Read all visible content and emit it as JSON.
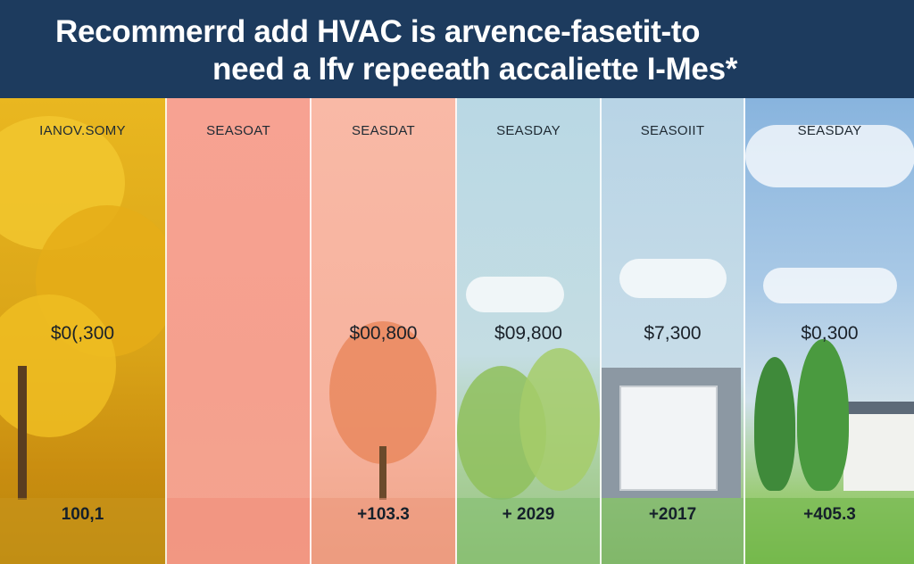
{
  "header": {
    "title_line1": "Recommerrd add HVAC is arvence-fasetit-to",
    "title_line2": "need a Ifv repeeath accaliette I-Mes*"
  },
  "columns": [
    {
      "label": "IANOV.SOMY",
      "price": "$0(,300",
      "change": "100,1"
    },
    {
      "label": "SEASOAT",
      "price": "",
      "change": ""
    },
    {
      "label": "SEASDAT",
      "price": "$00,800",
      "change": "+103.3"
    },
    {
      "label": "SEASDAY",
      "price": "$09,800",
      "change": "+ 2029"
    },
    {
      "label": "SEASOIIT",
      "price": "$7,300",
      "change": "+2017"
    },
    {
      "label": "SEASDAY",
      "price": "$0,300",
      "change": "+405.3"
    }
  ],
  "colors": {
    "header_bg": "#1d3b5e",
    "autumn": "#e9b720",
    "salmon": "#f7a292",
    "sky": "#b9d8e4",
    "grass": "#7fbe55"
  }
}
